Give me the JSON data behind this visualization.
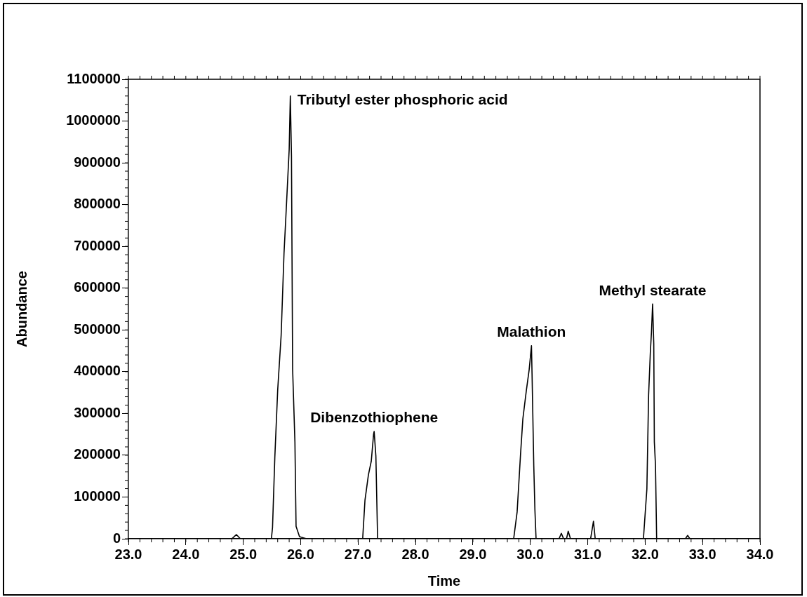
{
  "chart_data": {
    "type": "line",
    "xlabel": "Time",
    "ylabel": "Abundance",
    "x": [
      23.0,
      24.8,
      24.88,
      24.95,
      25.49,
      25.51,
      25.55,
      25.6,
      25.66,
      25.71,
      25.74,
      25.8,
      25.82,
      25.84,
      25.86,
      25.9,
      25.92,
      25.98,
      26.1,
      27.08,
      27.12,
      27.18,
      27.23,
      27.27,
      27.28,
      27.31,
      27.34,
      29.71,
      29.77,
      29.83,
      29.87,
      29.93,
      29.98,
      30.02,
      30.03,
      30.06,
      30.08,
      30.1,
      30.5,
      30.54,
      30.58,
      30.63,
      30.66,
      30.7,
      31.05,
      31.1,
      31.13,
      31.97,
      32.03,
      32.06,
      32.09,
      32.11,
      32.13,
      32.15,
      32.16,
      32.18,
      32.2,
      32.7,
      32.74,
      32.78,
      34.0
    ],
    "series": [
      {
        "color": "#000000",
        "values": [
          0,
          0,
          10000,
          0,
          0,
          27000,
          195000,
          356000,
          487000,
          683000,
          764000,
          932000,
          1060000,
          917000,
          406000,
          232000,
          30000,
          5000,
          0,
          0,
          92000,
          153000,
          186000,
          250000,
          257000,
          198000,
          0,
          0,
          64000,
          203000,
          287000,
          354000,
          405000,
          462000,
          395000,
          176000,
          69000,
          0,
          0,
          13000,
          0,
          0,
          18000,
          0,
          0,
          42000,
          0,
          0,
          119000,
          344000,
          445000,
          495000,
          562000,
          467000,
          232000,
          176000,
          0,
          0,
          8000,
          0,
          0
        ]
      }
    ],
    "xlim": [
      23.0,
      34.0
    ],
    "xticks": [
      {
        "value": 23,
        "label": "23.0"
      },
      {
        "value": 24,
        "label": "24.0"
      },
      {
        "value": 25,
        "label": "25.0"
      },
      {
        "value": 26,
        "label": "26.0"
      },
      {
        "value": 27,
        "label": "27.0"
      },
      {
        "value": 28,
        "label": "28.0"
      },
      {
        "value": 29,
        "label": "29.0"
      },
      {
        "value": 30,
        "label": "30.0"
      },
      {
        "value": 31,
        "label": "31.0"
      },
      {
        "value": 32,
        "label": "32.0"
      },
      {
        "value": 33,
        "label": "33.0"
      },
      {
        "value": 34,
        "label": "34.0"
      }
    ],
    "ylim": [
      0,
      1100000
    ],
    "yticks": [
      0,
      100000,
      200000,
      300000,
      400000,
      500000,
      600000,
      700000,
      800000,
      900000,
      1000000,
      1100000
    ],
    "annotations": [
      {
        "text": "Tributyl ester phosphoric acid",
        "x": 25.82,
        "y": 1060000
      },
      {
        "text": "Dibenzothiophene",
        "x": 27.28,
        "y": 257000
      },
      {
        "text": "Malathion",
        "x": 30.02,
        "y": 462000
      },
      {
        "text": "Methyl stearate",
        "x": 32.13,
        "y": 562000
      }
    ],
    "grid": false,
    "legend": false,
    "marker": "none",
    "line_style": "solid"
  }
}
